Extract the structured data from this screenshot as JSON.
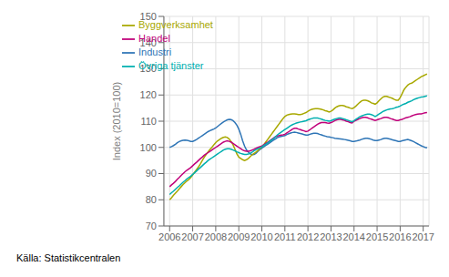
{
  "chart_data": {
    "type": "line",
    "ylabel": "Index (2010=100)",
    "annotations": [
      "Källa: Statistikcentralen"
    ],
    "grid": true,
    "legend": "upper left",
    "xlim": [
      2005.75,
      2017.25
    ],
    "xticks": [
      2006,
      2007,
      2008,
      2009,
      2010,
      2011,
      2012,
      2013,
      2014,
      2015,
      2016,
      2017
    ],
    "ylim": [
      70,
      150
    ],
    "yticks": [
      70,
      80,
      90,
      100,
      110,
      120,
      130,
      140,
      150
    ],
    "x": [
      2006.0,
      2006.0833333333333,
      2006.1666666666667,
      2006.25,
      2006.3333333333333,
      2006.4166666666667,
      2006.5,
      2006.5833333333333,
      2006.6666666666667,
      2006.75,
      2006.8333333333333,
      2006.9166666666667,
      2007.0,
      2007.0833333333333,
      2007.1666666666667,
      2007.25,
      2007.3333333333333,
      2007.4166666666667,
      2007.5,
      2007.5833333333333,
      2007.6666666666667,
      2007.75,
      2007.8333333333333,
      2007.9166666666667,
      2008.0,
      2008.0833333333333,
      2008.1666666666667,
      2008.25,
      2008.3333333333333,
      2008.4166666666667,
      2008.5,
      2008.5833333333333,
      2008.6666666666667,
      2008.75,
      2008.8333333333333,
      2008.9166666666667,
      2009.0,
      2009.0833333333333,
      2009.1666666666667,
      2009.25,
      2009.3333333333333,
      2009.4166666666667,
      2009.5,
      2009.5833333333333,
      2009.6666666666667,
      2009.75,
      2009.8333333333333,
      2009.9166666666667,
      2010.0,
      2010.0833333333333,
      2010.1666666666667,
      2010.25,
      2010.3333333333333,
      2010.4166666666667,
      2010.5,
      2010.5833333333333,
      2010.6666666666667,
      2010.75,
      2010.8333333333333,
      2010.9166666666667,
      2011.0,
      2011.0833333333333,
      2011.1666666666667,
      2011.25,
      2011.3333333333333,
      2011.4166666666667,
      2011.5,
      2011.5833333333333,
      2011.6666666666667,
      2011.75,
      2011.8333333333333,
      2011.9166666666667,
      2012.0,
      2012.0833333333333,
      2012.1666666666667,
      2012.25,
      2012.3333333333333,
      2012.4166666666667,
      2012.5,
      2012.5833333333333,
      2012.6666666666667,
      2012.75,
      2012.8333333333333,
      2012.9166666666667,
      2013.0,
      2013.0833333333333,
      2013.1666666666667,
      2013.25,
      2013.3333333333333,
      2013.4166666666667,
      2013.5,
      2013.5833333333333,
      2013.6666666666667,
      2013.75,
      2013.8333333333333,
      2013.9166666666667,
      2014.0,
      2014.0833333333333,
      2014.1666666666667,
      2014.25,
      2014.3333333333333,
      2014.4166666666667,
      2014.5,
      2014.5833333333333,
      2014.6666666666667,
      2014.75,
      2014.8333333333333,
      2014.9166666666667,
      2015.0,
      2015.0833333333333,
      2015.1666666666667,
      2015.25,
      2015.3333333333333,
      2015.4166666666667,
      2015.5,
      2015.5833333333333,
      2015.6666666666667,
      2015.75,
      2015.8333333333333,
      2015.9166666666667,
      2016.0,
      2016.0833333333333,
      2016.1666666666667,
      2016.25,
      2016.3333333333333,
      2016.4166666666667,
      2016.5,
      2016.5833333333333,
      2016.6666666666667,
      2016.75,
      2016.8333333333333,
      2016.9166666666667,
      2017.0,
      2017.0833333333333,
      2017.1666666666667
    ],
    "series": [
      {
        "name": "Industri",
        "color": "#2e75b6",
        "values": [
          100.0,
          100.3,
          100.7,
          101.2,
          101.8,
          102.2,
          102.5,
          102.7,
          102.8,
          102.7,
          102.5,
          102.3,
          102.3,
          102.6,
          103.0,
          103.5,
          104.0,
          104.5,
          105.0,
          105.5,
          106.0,
          106.4,
          106.7,
          107.0,
          107.4,
          108.0,
          108.6,
          109.2,
          109.7,
          110.1,
          110.5,
          110.7,
          110.6,
          110.2,
          109.5,
          108.5,
          107.0,
          105.0,
          102.5,
          100.5,
          99.0,
          98.2,
          97.5,
          97.2,
          97.3,
          97.8,
          98.5,
          99.2,
          99.7,
          100.2,
          100.7,
          101.2,
          101.7,
          102.2,
          102.7,
          103.2,
          103.7,
          104.0,
          104.2,
          104.3,
          104.5,
          104.9,
          105.2,
          105.5,
          105.7,
          105.8,
          105.7,
          105.5,
          105.3,
          105.1,
          104.9,
          104.7,
          104.7,
          105.0,
          105.2,
          105.4,
          105.4,
          105.3,
          105.0,
          104.8,
          104.5,
          104.3,
          104.1,
          104.0,
          103.8,
          103.7,
          103.5,
          103.4,
          103.3,
          103.2,
          103.1,
          103.0,
          102.9,
          102.7,
          102.5,
          102.3,
          102.3,
          102.4,
          102.6,
          102.8,
          103.1,
          103.3,
          103.5,
          103.5,
          103.3,
          103.1,
          102.8,
          102.6,
          102.6,
          102.8,
          103.0,
          103.3,
          103.5,
          103.5,
          103.3,
          103.1,
          102.9,
          102.7,
          102.5,
          102.3,
          102.3,
          102.5,
          102.7,
          102.9,
          103.0,
          102.8,
          102.5,
          102.2,
          101.8,
          101.4,
          101.0,
          100.6,
          100.3,
          100.0,
          99.8
        ]
      },
      {
        "name": "Byggverksamhet",
        "color": "#a8a800",
        "values": [
          80.0,
          80.8,
          81.7,
          82.5,
          83.3,
          84.2,
          85.0,
          85.8,
          86.5,
          87.2,
          87.8,
          88.5,
          89.5,
          90.5,
          91.5,
          92.5,
          93.7,
          95.0,
          96.2,
          97.3,
          98.3,
          99.2,
          100.0,
          101.0,
          101.8,
          102.5,
          103.0,
          103.5,
          103.8,
          104.0,
          103.8,
          103.2,
          102.2,
          101.0,
          99.3,
          97.5,
          96.3,
          95.8,
          95.3,
          95.0,
          95.3,
          95.8,
          96.5,
          97.2,
          97.7,
          98.2,
          98.8,
          99.5,
          100.2,
          101.0,
          102.0,
          103.0,
          104.0,
          105.0,
          106.0,
          107.0,
          108.0,
          109.0,
          110.0,
          111.0,
          111.8,
          112.3,
          112.5,
          112.7,
          112.8,
          112.8,
          112.7,
          112.5,
          112.5,
          112.7,
          113.0,
          113.3,
          113.8,
          114.2,
          114.5,
          114.7,
          114.8,
          114.8,
          114.7,
          114.5,
          114.3,
          114.0,
          113.8,
          113.5,
          113.8,
          114.3,
          115.0,
          115.5,
          115.8,
          116.0,
          116.0,
          115.8,
          115.5,
          115.3,
          115.0,
          114.8,
          115.2,
          115.8,
          116.5,
          117.2,
          117.8,
          118.0,
          118.0,
          117.8,
          117.5,
          117.0,
          116.8,
          116.5,
          117.0,
          117.8,
          118.5,
          119.2,
          119.5,
          119.5,
          119.2,
          119.0,
          118.7,
          118.3,
          118.0,
          118.0,
          119.0,
          120.5,
          122.0,
          123.0,
          123.8,
          124.3,
          124.5,
          125.0,
          125.5,
          126.0,
          126.5,
          127.0,
          127.3,
          127.7,
          128.0
        ]
      },
      {
        "name": "Handel",
        "color": "#c0007a",
        "values": [
          85.0,
          85.7,
          86.3,
          87.0,
          87.8,
          88.5,
          89.3,
          90.0,
          90.7,
          91.3,
          91.8,
          92.3,
          93.0,
          93.7,
          94.3,
          95.0,
          95.7,
          96.3,
          97.0,
          97.5,
          98.0,
          98.5,
          99.0,
          99.5,
          100.0,
          100.5,
          101.0,
          101.5,
          102.0,
          102.3,
          102.5,
          102.3,
          102.0,
          101.5,
          101.0,
          100.5,
          100.0,
          99.5,
          99.0,
          98.7,
          98.5,
          98.5,
          98.7,
          99.0,
          99.3,
          99.7,
          100.0,
          100.3,
          100.5,
          101.0,
          101.5,
          102.0,
          102.5,
          103.0,
          103.5,
          104.0,
          104.3,
          104.5,
          104.7,
          104.8,
          105.0,
          105.5,
          106.0,
          106.5,
          107.0,
          107.3,
          107.3,
          107.0,
          106.8,
          106.5,
          106.3,
          106.0,
          106.2,
          106.7,
          107.3,
          107.8,
          108.3,
          108.8,
          109.2,
          109.5,
          109.5,
          109.5,
          109.3,
          109.2,
          109.5,
          109.8,
          110.2,
          110.5,
          110.7,
          110.7,
          110.5,
          110.3,
          110.0,
          109.8,
          109.5,
          109.3,
          110.0,
          110.3,
          110.7,
          111.0,
          111.3,
          111.5,
          111.5,
          111.3,
          111.0,
          110.8,
          110.5,
          110.3,
          110.5,
          110.8,
          111.0,
          111.3,
          111.5,
          111.5,
          111.3,
          111.0,
          110.8,
          110.5,
          110.3,
          110.3,
          110.5,
          110.7,
          111.0,
          111.3,
          111.5,
          111.7,
          112.0,
          112.3,
          112.5,
          112.7,
          112.8,
          112.8,
          113.0,
          113.2,
          113.3
        ]
      },
      {
        "name": "Övriga tjänster",
        "color": "#00afaf",
        "values": [
          82.0,
          82.7,
          83.3,
          84.0,
          84.7,
          85.3,
          86.0,
          86.7,
          87.3,
          88.0,
          88.5,
          89.0,
          89.7,
          90.3,
          91.0,
          91.7,
          92.3,
          93.0,
          93.7,
          94.3,
          95.0,
          95.5,
          96.0,
          96.5,
          97.0,
          97.5,
          98.0,
          98.5,
          99.0,
          99.3,
          99.5,
          99.5,
          99.3,
          99.0,
          98.7,
          98.3,
          98.0,
          97.7,
          97.5,
          97.3,
          97.3,
          97.5,
          97.8,
          98.2,
          98.7,
          99.2,
          99.5,
          99.8,
          100.2,
          100.7,
          101.2,
          101.7,
          102.2,
          102.8,
          103.3,
          104.0,
          104.7,
          105.3,
          105.8,
          106.3,
          106.8,
          107.3,
          107.8,
          108.3,
          108.7,
          109.0,
          109.3,
          109.5,
          109.7,
          109.8,
          110.0,
          110.2,
          110.5,
          110.8,
          111.0,
          111.2,
          111.2,
          111.2,
          111.0,
          110.8,
          110.5,
          110.3,
          110.2,
          110.0,
          110.2,
          110.5,
          110.8,
          111.0,
          111.2,
          111.2,
          111.0,
          110.8,
          110.5,
          110.3,
          110.0,
          109.8,
          110.2,
          110.7,
          111.2,
          111.7,
          112.0,
          112.3,
          112.5,
          112.7,
          112.7,
          112.5,
          112.2,
          111.8,
          112.2,
          112.7,
          113.2,
          113.7,
          114.0,
          114.3,
          114.5,
          114.7,
          114.8,
          115.0,
          115.3,
          115.5,
          115.8,
          116.2,
          116.5,
          116.8,
          117.2,
          117.5,
          117.8,
          118.2,
          118.5,
          118.8,
          119.0,
          119.2,
          119.3,
          119.5,
          119.7
        ]
      }
    ]
  }
}
